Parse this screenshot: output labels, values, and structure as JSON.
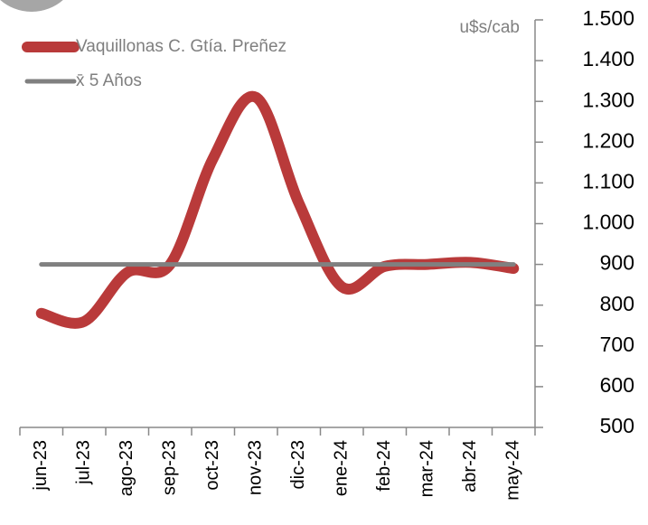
{
  "chart_data": {
    "type": "line",
    "y_axis_label": "u$s/cab",
    "categories": [
      "jun-23",
      "jul-23",
      "ago-23",
      "sep-23",
      "oct-23",
      "nov-23",
      "dic-23",
      "ene-24",
      "feb-24",
      "mar-24",
      "abr-24",
      "may-24"
    ],
    "series": [
      {
        "name": "Vaquillonas C. Gtía. Preñez",
        "color": "#b93a3a",
        "values": [
          780,
          760,
          880,
          900,
          1160,
          1310,
          1050,
          845,
          895,
          900,
          905,
          890
        ]
      },
      {
        "name": "x̄ 5 Años",
        "color": "#808080",
        "values": [
          900,
          900,
          900,
          900,
          900,
          900,
          900,
          900,
          900,
          900,
          900,
          900
        ]
      }
    ],
    "ylim": [
      500,
      1500
    ],
    "yticks": [
      {
        "value": 1500,
        "label": "1.500"
      },
      {
        "value": 1400,
        "label": "1.400"
      },
      {
        "value": 1300,
        "label": "1.300"
      },
      {
        "value": 1200,
        "label": "1.200"
      },
      {
        "value": 1100,
        "label": "1.100"
      },
      {
        "value": 1000,
        "label": "1.000"
      },
      900,
      800,
      700,
      600,
      500
    ],
    "y_axis_side": "right",
    "legend": "top-left",
    "smooth": true,
    "grid": false
  }
}
